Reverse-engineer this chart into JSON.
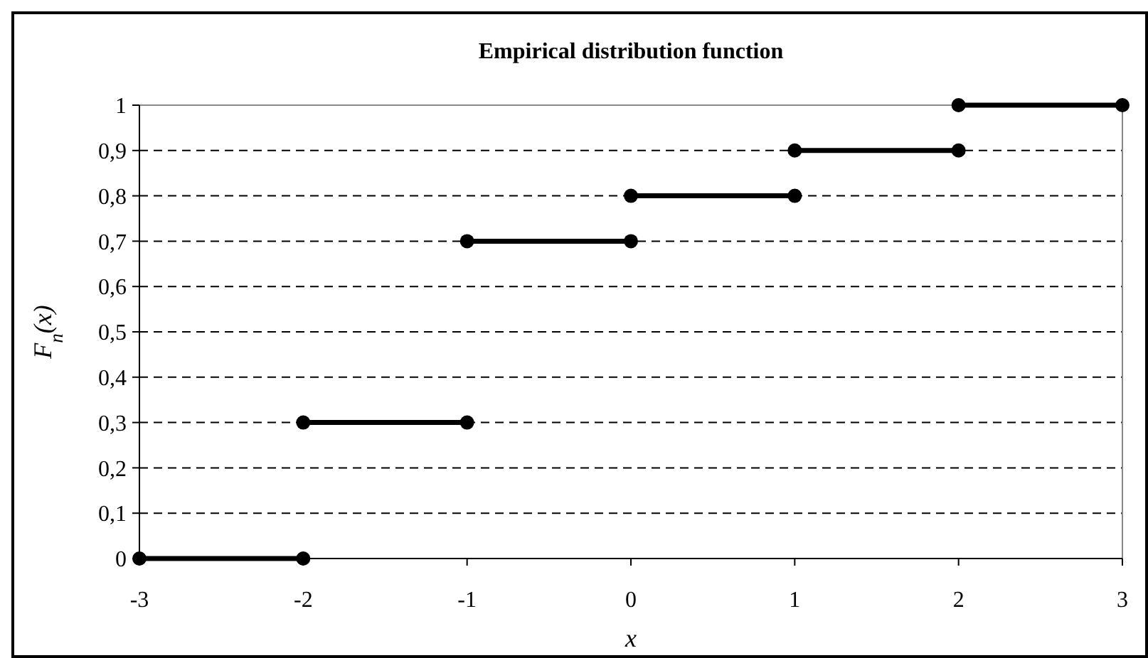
{
  "chart_data": {
    "type": "line",
    "title": "Empirical distribution function",
    "xlabel": "x",
    "ylabel": "F$_{n}$(x)",
    "series": [
      {
        "color": "#000000",
        "x": [
          -3,
          -2
        ],
        "values": [
          0,
          0
        ]
      },
      {
        "color": "#000000",
        "x": [
          -2,
          -1
        ],
        "values": [
          0.3,
          0.3
        ]
      },
      {
        "color": "#000000",
        "x": [
          -1,
          0
        ],
        "values": [
          0.7,
          0.7
        ]
      },
      {
        "color": "#000000",
        "x": [
          0,
          1
        ],
        "values": [
          0.8,
          0.8
        ]
      },
      {
        "color": "#000000",
        "x": [
          1,
          2
        ],
        "values": [
          0.9,
          0.9
        ]
      },
      {
        "color": "#000000",
        "x": [
          2,
          3
        ],
        "values": [
          1,
          1
        ]
      }
    ],
    "xlim": [
      -3,
      3
    ],
    "xticks": [
      -3,
      -2,
      -1,
      0,
      1,
      2,
      3
    ],
    "ylim": [
      0,
      1
    ],
    "yticks": [
      0,
      {
        "value": 0.1,
        "label": "0,1"
      },
      {
        "value": 0.2,
        "label": "0,2"
      },
      {
        "value": 0.3,
        "label": "0,3"
      },
      {
        "value": 0.4,
        "label": "0,4"
      },
      {
        "value": 0.5,
        "label": "0,5"
      },
      {
        "value": 0.6,
        "label": "0,6"
      },
      {
        "value": 0.7,
        "label": "0,7"
      },
      {
        "value": 0.8,
        "label": "0,8"
      },
      {
        "value": 0.9,
        "label": "0,9"
      },
      1
    ],
    "grid": "y",
    "marker": "circle",
    "line_style": "solid"
  }
}
